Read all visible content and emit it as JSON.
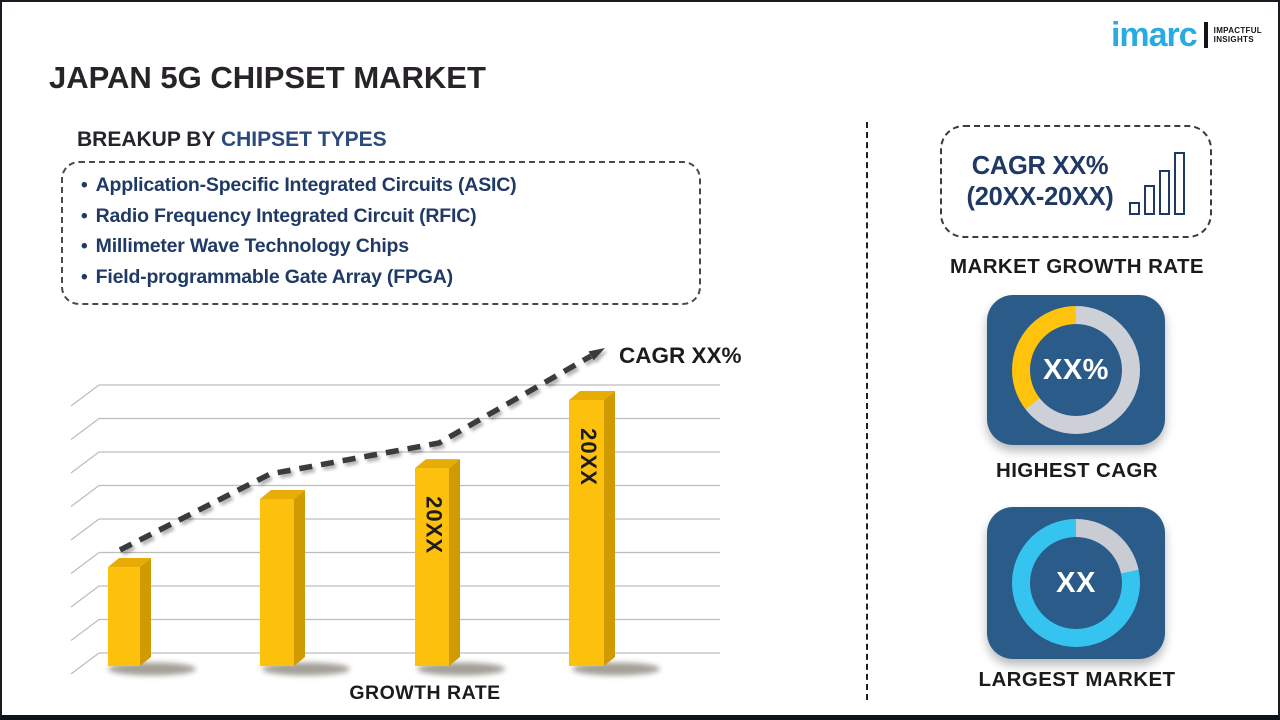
{
  "header": {
    "title": "JAPAN 5G CHIPSET MARKET"
  },
  "logo": {
    "brand": "imarc",
    "tagline_line1": "IMPACTFUL",
    "tagline_line2": "INSIGHTS",
    "brand_color": "#29abe2"
  },
  "breakup": {
    "prefix": "BREAKUP BY ",
    "highlight": "CHIPSET TYPES",
    "items": [
      "Application-Specific Integrated Circuits (ASIC)",
      "Radio Frequency Integrated Circuit (RFIC)",
      "Millimeter Wave Technology Chips",
      "Field-programmable Gate Array (FPGA)"
    ]
  },
  "chart_data": {
    "type": "bar",
    "title": "",
    "xlabel": "GROWTH RATE",
    "ylabel": "",
    "categories": [
      "",
      "",
      "20XX",
      "20XX"
    ],
    "bar_labels": [
      "",
      "",
      "20XX",
      "20XX"
    ],
    "values_relative": [
      0.372,
      0.628,
      0.744,
      1.0
    ],
    "trend": {
      "label": "CAGR XX%",
      "points_relative": [
        0.44,
        0.72,
        0.84,
        1.18
      ]
    },
    "gridline_count": 9,
    "grid_style": "3d-perspective",
    "bar_color": "#fdc10d",
    "bar_side_color": "#d09a03",
    "bar_top_color": "#e7ac05",
    "trend_color": "#3a3a3a",
    "legend": "none"
  },
  "right_panel": {
    "growth_box": {
      "line1": "CAGR XX%",
      "line2": "(20XX-20XX)",
      "icon": "bar-chart-icon",
      "icon_heights": [
        13,
        30,
        45,
        63
      ]
    },
    "growth_label": "MARKET GROWTH RATE",
    "highest_cagr": {
      "value": "XX%",
      "label": "HIGHEST CAGR",
      "tile_color": "#2a5b89",
      "ring_segments": [
        {
          "color": "#cdd1d7",
          "from": 0,
          "to": 232
        },
        {
          "color": "#ffc20d",
          "from": 232,
          "to": 360
        }
      ]
    },
    "largest_market": {
      "value": "XX",
      "label": "LARGEST MARKET",
      "tile_color": "#2a5b89",
      "ring_segments": [
        {
          "color": "#c9cdd3",
          "from": 0,
          "to": 78
        },
        {
          "color": "#35c4f0",
          "from": 78,
          "to": 360
        }
      ]
    }
  },
  "colors": {
    "navy_text": "#1f3864",
    "list_text": "#203a66",
    "heading_highlight": "#2a4a7c",
    "body_text": "#27232a",
    "grid": "#bdbdbd"
  }
}
